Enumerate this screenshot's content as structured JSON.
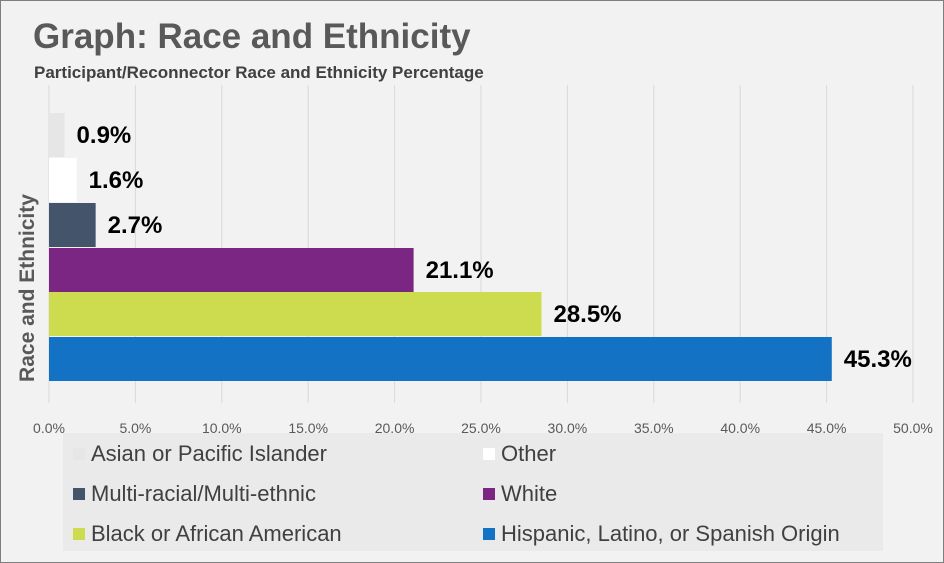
{
  "chart_data": {
    "type": "bar",
    "orientation": "horizontal",
    "title": "Graph: Race and Ethnicity",
    "subtitle": "Participant/Reconnector Race and Ethnicity Percentage",
    "ylabel": "Race and Ethnicity",
    "xlim": [
      0,
      50
    ],
    "x_ticks": [
      "0.0%",
      "5.0%",
      "10.0%",
      "15.0%",
      "20.0%",
      "25.0%",
      "30.0%",
      "35.0%",
      "40.0%",
      "45.0%",
      "50.0%"
    ],
    "grid": true,
    "legend_position": "bottom",
    "categories": [
      "Asian or Pacific Islander",
      "Other",
      "Multi-racial/Multi-ethnic",
      "White",
      "Black or African American",
      "Hispanic, Latino, or Spanish Origin"
    ],
    "values": [
      0.9,
      1.6,
      2.7,
      21.1,
      28.5,
      45.3
    ],
    "data_labels": [
      "0.9%",
      "1.6%",
      "2.7%",
      "21.1%",
      "28.5%",
      "45.3%"
    ],
    "colors": [
      "#e6e6e6",
      "#ffffff",
      "#44546a",
      "#7b2683",
      "#cddc4f",
      "#1472c4"
    ]
  }
}
